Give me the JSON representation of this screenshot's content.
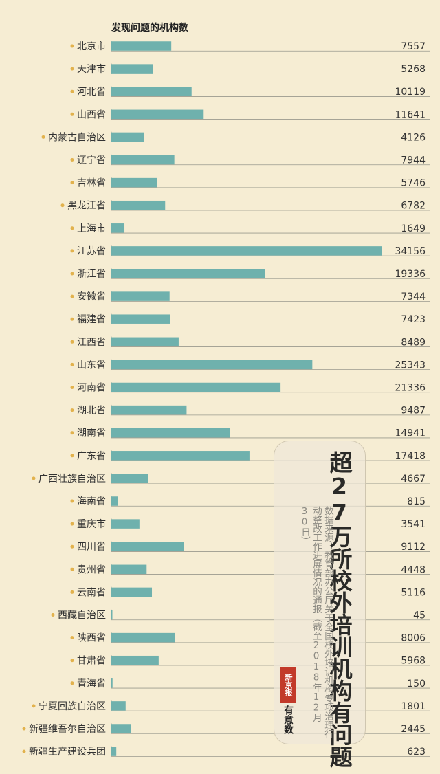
{
  "chart_data": {
    "type": "bar",
    "orientation": "horizontal",
    "ylabel": "发现问题的机构数",
    "categories": [
      "北京市",
      "天津市",
      "河北省",
      "山西省",
      "内蒙古自治区",
      "辽宁省",
      "吉林省",
      "黑龙江省",
      "上海市",
      "江苏省",
      "浙江省",
      "安徽省",
      "福建省",
      "江西省",
      "山东省",
      "河南省",
      "湖北省",
      "湖南省",
      "广东省",
      "广西壮族自治区",
      "海南省",
      "重庆市",
      "四川省",
      "贵州省",
      "云南省",
      "西藏自治区",
      "陕西省",
      "甘肃省",
      "青海省",
      "宁夏回族自治区",
      "新疆维吾尔自治区",
      "新疆生产建设兵团"
    ],
    "values": [
      7557,
      5268,
      10119,
      11641,
      4126,
      7944,
      5746,
      6782,
      1649,
      34156,
      19336,
      7344,
      7423,
      8489,
      25343,
      21336,
      9487,
      14941,
      17418,
      4667,
      815,
      3541,
      9112,
      4448,
      5116,
      45,
      8006,
      5968,
      150,
      1801,
      2445,
      623
    ],
    "xlim": [
      0,
      34156
    ],
    "grid": false,
    "legend": "none"
  },
  "card": {
    "title": "超27万所校外培训机构有问题",
    "source": "数据来源：教育部办公厅关于全国校外培训机构专项治理行动整改工作进展情况的通报（截至2018年12月30日）",
    "logo_red": "新京报",
    "logo_black": "有意数"
  },
  "colors": {
    "background": "#f6edd3",
    "bar": "#6fb1ad",
    "dot": "#e2b24d",
    "text": "#333333",
    "line": "#9a9a8e"
  }
}
